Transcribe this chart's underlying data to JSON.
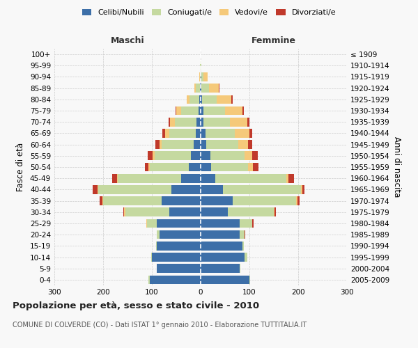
{
  "age_groups": [
    "0-4",
    "5-9",
    "10-14",
    "15-19",
    "20-24",
    "25-29",
    "30-34",
    "35-39",
    "40-44",
    "45-49",
    "50-54",
    "55-59",
    "60-64",
    "65-69",
    "70-74",
    "75-79",
    "80-84",
    "85-89",
    "90-94",
    "95-99",
    "100+"
  ],
  "birth_years": [
    "2005-2009",
    "2000-2004",
    "1995-1999",
    "1990-1994",
    "1985-1989",
    "1980-1984",
    "1975-1979",
    "1970-1974",
    "1965-1969",
    "1960-1964",
    "1955-1959",
    "1950-1954",
    "1945-1949",
    "1940-1944",
    "1935-1939",
    "1930-1934",
    "1925-1929",
    "1920-1924",
    "1915-1919",
    "1910-1914",
    "≤ 1909"
  ],
  "male": {
    "celibi": [
      105,
      90,
      100,
      90,
      85,
      90,
      65,
      80,
      60,
      40,
      25,
      20,
      15,
      10,
      8,
      5,
      3,
      2,
      0,
      0,
      0
    ],
    "coniugati": [
      2,
      0,
      2,
      2,
      5,
      20,
      90,
      120,
      150,
      130,
      80,
      75,
      65,
      55,
      45,
      35,
      20,
      8,
      2,
      1,
      0
    ],
    "vedovi": [
      0,
      0,
      0,
      0,
      0,
      1,
      2,
      2,
      2,
      2,
      2,
      3,
      5,
      8,
      10,
      10,
      6,
      3,
      1,
      0,
      0
    ],
    "divorziati": [
      0,
      0,
      0,
      0,
      0,
      1,
      2,
      5,
      10,
      10,
      8,
      10,
      8,
      5,
      3,
      1,
      0,
      0,
      0,
      0,
      0
    ]
  },
  "female": {
    "nubili": [
      100,
      80,
      90,
      85,
      80,
      80,
      55,
      65,
      45,
      30,
      22,
      20,
      12,
      10,
      5,
      5,
      3,
      2,
      1,
      0,
      0
    ],
    "coniugate": [
      2,
      2,
      5,
      3,
      10,
      25,
      95,
      130,
      160,
      145,
      75,
      70,
      65,
      60,
      55,
      45,
      30,
      15,
      5,
      1,
      0
    ],
    "vedove": [
      0,
      0,
      0,
      0,
      0,
      1,
      2,
      3,
      3,
      5,
      10,
      15,
      20,
      30,
      35,
      35,
      30,
      20,
      8,
      1,
      0
    ],
    "divorziate": [
      0,
      0,
      0,
      0,
      1,
      2,
      2,
      5,
      5,
      12,
      12,
      12,
      8,
      5,
      5,
      3,
      2,
      2,
      0,
      0,
      0
    ]
  },
  "colors": {
    "celibi": "#3d6fa8",
    "coniugati": "#c5d9a0",
    "vedovi": "#f5c97a",
    "divorziati": "#c0392b"
  },
  "xlim": 300,
  "title": "Popolazione per età, sesso e stato civile - 2010",
  "subtitle": "COMUNE DI COLVERDE (CO) - Dati ISTAT 1° gennaio 2010 - Elaborazione TUTTITALIA.IT",
  "ylabel_left": "Fasce di età",
  "ylabel_right": "Anni di nascita",
  "xlabel_left": "Maschi",
  "xlabel_right": "Femmine",
  "bg_color": "#f8f8f8",
  "grid_color": "#cccccc"
}
